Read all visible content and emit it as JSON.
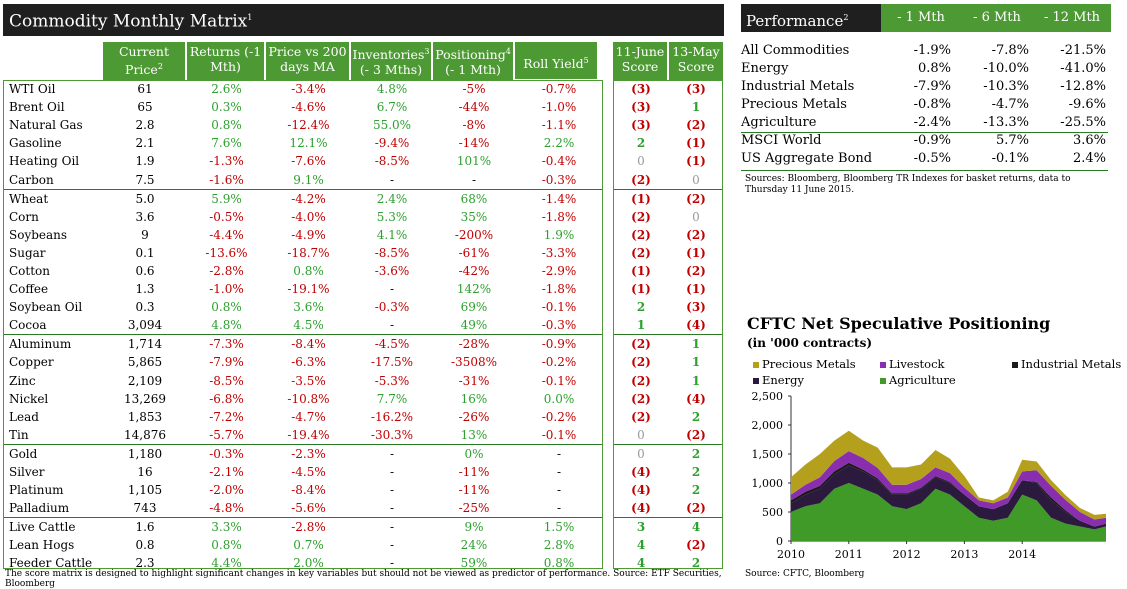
{
  "matrix": {
    "title": "Commodity Monthly Matrix",
    "title_sup": "1",
    "headers": {
      "price": "Current Price",
      "price_sup": "2",
      "returns": "Returns (-1 Mth)",
      "ma": "Price vs 200 days MA",
      "inv": "Inventories",
      "inv_sup": "3",
      "inv2": "(- 3 Mths)",
      "pos": "Positioning",
      "pos_sup": "4",
      "pos2": "(- 1 Mth)",
      "roll": "Roll Yield",
      "roll_sup": "5",
      "s1a": "11-June",
      "s1b": "Score",
      "s2a": "13-May",
      "s2b": "Score"
    },
    "rows": [
      [
        "WTI Oil",
        "61",
        "2.6%",
        "-3.4%",
        "4.8%",
        "-5%",
        "-0.7%",
        "(3)",
        "(3)"
      ],
      [
        "Brent Oil",
        "65",
        "0.3%",
        "-4.6%",
        "6.7%",
        "-44%",
        "-1.0%",
        "(3)",
        "1"
      ],
      [
        "Natural Gas",
        "2.8",
        "0.8%",
        "-12.4%",
        "55.0%",
        "-8%",
        "-1.1%",
        "(3)",
        "(2)"
      ],
      [
        "Gasoline",
        "2.1",
        "7.6%",
        "12.1%",
        "-9.4%",
        "-14%",
        "2.2%",
        "2",
        "(1)"
      ],
      [
        "Heating Oil",
        "1.9",
        "-1.3%",
        "-7.6%",
        "-8.5%",
        "101%",
        "-0.4%",
        "0",
        "(1)"
      ],
      [
        "Carbon",
        "7.5",
        "-1.6%",
        "9.1%",
        "-",
        "-",
        "-0.3%",
        "(2)",
        "0"
      ],
      [
        "Wheat",
        "5.0",
        "5.9%",
        "-4.2%",
        "2.4%",
        "68%",
        "-1.4%",
        "(1)",
        "(2)"
      ],
      [
        "Corn",
        "3.6",
        "-0.5%",
        "-4.0%",
        "5.3%",
        "35%",
        "-1.8%",
        "(2)",
        "0"
      ],
      [
        "Soybeans",
        "9",
        "-4.4%",
        "-4.9%",
        "4.1%",
        "-200%",
        "1.9%",
        "(2)",
        "(2)"
      ],
      [
        "Sugar",
        "0.1",
        "-13.6%",
        "-18.7%",
        "-8.5%",
        "-61%",
        "-3.3%",
        "(2)",
        "(1)"
      ],
      [
        "Cotton",
        "0.6",
        "-2.8%",
        "0.8%",
        "-3.6%",
        "-42%",
        "-2.9%",
        "(1)",
        "(2)"
      ],
      [
        "Coffee",
        "1.3",
        "-1.0%",
        "-19.1%",
        "-",
        "142%",
        "-1.8%",
        "(1)",
        "(1)"
      ],
      [
        "Soybean Oil",
        "0.3",
        "0.8%",
        "3.6%",
        "-0.3%",
        "69%",
        "-0.1%",
        "2",
        "(3)"
      ],
      [
        "Cocoa",
        "3,094",
        "4.8%",
        "4.5%",
        "-",
        "49%",
        "-0.3%",
        "1",
        "(4)"
      ],
      [
        "Aluminum",
        "1,714",
        "-7.3%",
        "-8.4%",
        "-4.5%",
        "-28%",
        "-0.9%",
        "(2)",
        "1"
      ],
      [
        "Copper",
        "5,865",
        "-7.9%",
        "-6.3%",
        "-17.5%",
        "-3508%",
        "-0.2%",
        "(2)",
        "1"
      ],
      [
        "Zinc",
        "2,109",
        "-8.5%",
        "-3.5%",
        "-5.3%",
        "-31%",
        "-0.1%",
        "(2)",
        "1"
      ],
      [
        "Nickel",
        "13,269",
        "-6.8%",
        "-10.8%",
        "7.7%",
        "16%",
        "0.0%",
        "(2)",
        "(4)"
      ],
      [
        "Lead",
        "1,853",
        "-7.2%",
        "-4.7%",
        "-16.2%",
        "-26%",
        "-0.2%",
        "(2)",
        "2"
      ],
      [
        "Tin",
        "14,876",
        "-5.7%",
        "-19.4%",
        "-30.3%",
        "13%",
        "-0.1%",
        "0",
        "(2)"
      ],
      [
        "Gold",
        "1,180",
        "-0.3%",
        "-2.3%",
        "-",
        "0%",
        "-",
        "0",
        "2"
      ],
      [
        "Silver",
        "16",
        "-2.1%",
        "-4.5%",
        "-",
        "-11%",
        "-",
        "(4)",
        "2"
      ],
      [
        "Platinum",
        "1,105",
        "-2.0%",
        "-8.4%",
        "-",
        "-11%",
        "-",
        "(4)",
        "2"
      ],
      [
        "Palladium",
        "743",
        "-4.8%",
        "-5.6%",
        "-",
        "-25%",
        "-",
        "(4)",
        "(2)"
      ],
      [
        "Live Cattle",
        "1.6",
        "3.3%",
        "-2.8%",
        "-",
        "9%",
        "1.5%",
        "3",
        "4"
      ],
      [
        "Lean Hogs",
        "0.8",
        "0.8%",
        "0.7%",
        "-",
        "24%",
        "2.8%",
        "4",
        "(2)"
      ],
      [
        "Feeder Cattle",
        "2.3",
        "4.4%",
        "2.0%",
        "-",
        "59%",
        "0.8%",
        "4",
        "2"
      ]
    ],
    "group_starts": [
      0,
      6,
      14,
      20,
      24
    ],
    "footnote": "The score matrix is designed to highlight significant changes in key variables but should not be viewed as predictor of performance. Source: ETF Securities, Bloomberg"
  },
  "performance": {
    "title": "Performance",
    "title_sup": "2",
    "cols": [
      "- 1 Mth",
      "- 6 Mth",
      "- 12 Mth"
    ],
    "rows": [
      [
        "All Commodities",
        "-1.9%",
        "-7.8%",
        "-21.5%"
      ],
      [
        "Energy",
        "0.8%",
        "-10.0%",
        "-41.0%"
      ],
      [
        "Industrial Metals",
        "-7.9%",
        "-10.3%",
        "-12.8%"
      ],
      [
        "Precious Metals",
        "-0.8%",
        "-4.7%",
        "-9.6%"
      ],
      [
        "Agriculture",
        "-2.4%",
        "-13.3%",
        "-25.5%"
      ],
      [
        "MSCI World",
        "-0.9%",
        "5.7%",
        "3.6%"
      ],
      [
        "US Aggregate Bond",
        "-0.5%",
        "-0.1%",
        "2.4%"
      ]
    ],
    "sources": "Sources: Bloomberg, Bloomberg TR Indexes for basket returns, data to Thursday 11 June 2015."
  },
  "cftc": {
    "title": "CFTC Net Speculative Positioning",
    "subtitle": "(in '000 contracts)",
    "source": "Source: CFTC, Bloomberg",
    "colors": {
      "Precious Metals": "#b5a01e",
      "Livestock": "#8a2eb0",
      "Industrial Metals": "#1a1a1a",
      "Energy": "#2b1a3e",
      "Agriculture": "#3f9a28"
    },
    "legend": [
      "Precious Metals",
      "Livestock",
      "Industrial Metals",
      "Energy",
      "Agriculture"
    ]
  },
  "chart_data": {
    "type": "area",
    "title": "CFTC Net Speculative Positioning",
    "ylabel": "'000 contracts",
    "ylim": [
      0,
      2500
    ],
    "yticks": [
      "0",
      "500",
      "1,000",
      "1,500",
      "2,000",
      "2,500"
    ],
    "yticks_values": [
      0,
      500,
      1000,
      1500,
      2000,
      2500
    ],
    "xticks": [
      "2010",
      "2011",
      "2012",
      "2013",
      "2014"
    ],
    "xticks_values": [
      2010,
      2011,
      2012,
      2013,
      2014
    ],
    "xlim": [
      2010,
      2015.45
    ],
    "x": [
      2010.0,
      2010.25,
      2010.5,
      2010.75,
      2011.0,
      2011.25,
      2011.5,
      2011.75,
      2012.0,
      2012.25,
      2012.5,
      2012.75,
      2013.0,
      2013.25,
      2013.5,
      2013.75,
      2014.0,
      2014.25,
      2014.5,
      2014.75,
      2015.0,
      2015.25,
      2015.45
    ],
    "series": [
      {
        "name": "Agriculture",
        "values": [
          500,
          600,
          650,
          900,
          1000,
          900,
          800,
          600,
          550,
          650,
          900,
          800,
          600,
          400,
          350,
          400,
          800,
          700,
          400,
          300,
          250,
          200,
          250
        ]
      },
      {
        "name": "Energy",
        "values": [
          150,
          200,
          250,
          250,
          300,
          300,
          250,
          200,
          250,
          250,
          200,
          200,
          200,
          200,
          200,
          250,
          250,
          300,
          300,
          200,
          100,
          50,
          50
        ]
      },
      {
        "name": "Industrial Metals",
        "values": [
          50,
          50,
          50,
          50,
          50,
          30,
          30,
          20,
          20,
          20,
          20,
          20,
          0,
          0,
          0,
          0,
          0,
          20,
          50,
          30,
          0,
          0,
          0
        ]
      },
      {
        "name": "Livestock",
        "values": [
          100,
          120,
          150,
          180,
          200,
          200,
          180,
          150,
          150,
          150,
          150,
          150,
          120,
          100,
          100,
          100,
          150,
          200,
          200,
          180,
          150,
          120,
          100
        ]
      },
      {
        "name": "Precious Metals",
        "values": [
          300,
          350,
          400,
          350,
          350,
          300,
          350,
          300,
          300,
          250,
          300,
          250,
          200,
          50,
          50,
          100,
          200,
          150,
          100,
          80,
          70,
          80,
          70
        ]
      }
    ]
  }
}
